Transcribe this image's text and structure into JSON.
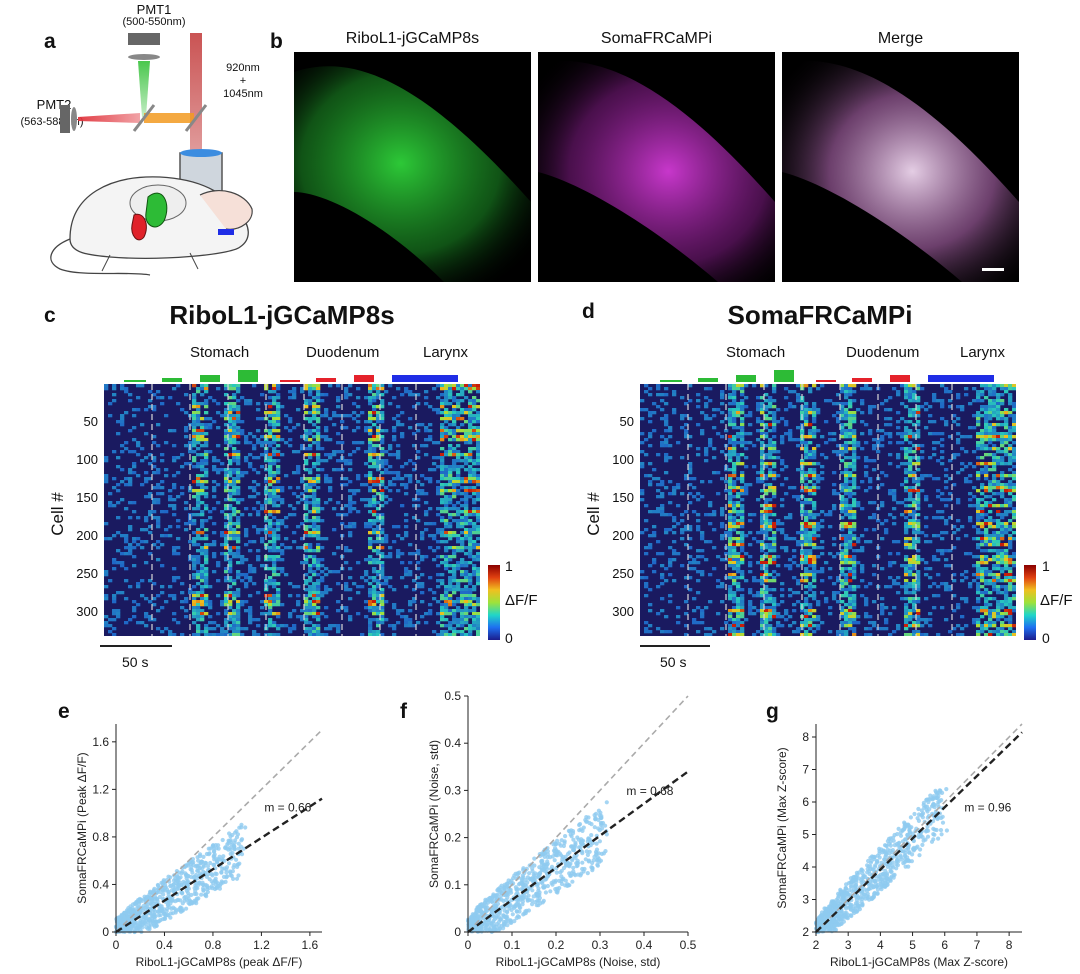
{
  "panel_a": {
    "label": "a",
    "pmt1": "PMT1",
    "pmt1_range": "(500-550nm)",
    "pmt2": "PMT2",
    "pmt2_range": "(563-588nm)",
    "laser_1": "920nm",
    "laser_plus": "+",
    "laser_2": "1045nm",
    "colors": {
      "green_beam": "#36c13a",
      "red_beam": "#e0333b",
      "orange_beam": "#f29a20",
      "laser_beam": "#b23a3a",
      "objective": "#cfd6dd"
    }
  },
  "panel_b": {
    "label": "b",
    "images": [
      {
        "title": "RiboL1-jGCaMP8s",
        "color": "#2fd33a"
      },
      {
        "title": "SomaFRCaMPi",
        "color": "#d23ad6"
      },
      {
        "title": "Merge",
        "color": "#e8c0e8"
      }
    ]
  },
  "panel_c": {
    "label": "c",
    "title": "RiboL1-jGCaMP8s",
    "scale_bar": "50 s",
    "cell_axis": "Cell #",
    "colorbar_label": "ΔF/F",
    "colorbar_max": "1",
    "colorbar_min": "0"
  },
  "panel_d": {
    "label": "d",
    "title": "SomaFRCaMPi",
    "scale_bar": "50 s",
    "cell_axis": "Cell #",
    "colorbar_label": "ΔF/F",
    "colorbar_max": "1",
    "colorbar_min": "0"
  },
  "stimuli": {
    "groups": [
      "Stomach",
      "Duodenum",
      "Larynx"
    ],
    "colors": {
      "stomach": "#2dbb36",
      "duodenum": "#e5222b",
      "larynx": "#1f2de6"
    }
  },
  "cell_ticks": [
    "50",
    "100",
    "150",
    "200",
    "250",
    "300"
  ],
  "chart_data": [
    {
      "type": "scatter",
      "panel": "e",
      "xlabel": "RiboL1-jGCaMP8s (peak ΔF/F)",
      "ylabel": "SomaFRCaMPi (Peak ΔF/F)",
      "xlim": [
        0,
        1.7
      ],
      "ylim": [
        0,
        1.75
      ],
      "xticks": [
        "0",
        "0.4",
        "0.8",
        "1.2",
        "1.6"
      ],
      "yticks": [
        "0",
        "0.4",
        "0.8",
        "1.2",
        "1.6"
      ],
      "fit_slope": 0.66,
      "fit_label": "m = 0.66",
      "point_color": "#8ecbf0"
    },
    {
      "type": "scatter",
      "panel": "f",
      "xlabel": "RiboL1-jGCaMP8s (Noise, std)",
      "ylabel": "SomaFRCaMPi (Noise, std)",
      "xlim": [
        0,
        0.5
      ],
      "ylim": [
        0,
        0.5
      ],
      "xticks": [
        "0",
        "0.1",
        "0.2",
        "0.3",
        "0.4",
        "0.5"
      ],
      "yticks": [
        "0",
        "0.1",
        "0.2",
        "0.3",
        "0.4",
        "0.5"
      ],
      "fit_slope": 0.68,
      "fit_label": "m = 0.68",
      "point_color": "#8ecbf0"
    },
    {
      "type": "scatter",
      "panel": "g",
      "xlabel": "RiboL1-jGCaMP8s (Max Z-score)",
      "ylabel": "SomaFRCaMPi (Max Z-score)",
      "xlim": [
        2,
        8.4
      ],
      "ylim": [
        2,
        8.4
      ],
      "xticks": [
        "2",
        "3",
        "4",
        "5",
        "6",
        "7",
        "8"
      ],
      "yticks": [
        "2",
        "3",
        "4",
        "5",
        "6",
        "7",
        "8"
      ],
      "fit_slope": 0.96,
      "fit_label": "m = 0.96",
      "point_color": "#8ecbf0"
    }
  ],
  "labels_efg": [
    "e",
    "f",
    "g"
  ]
}
